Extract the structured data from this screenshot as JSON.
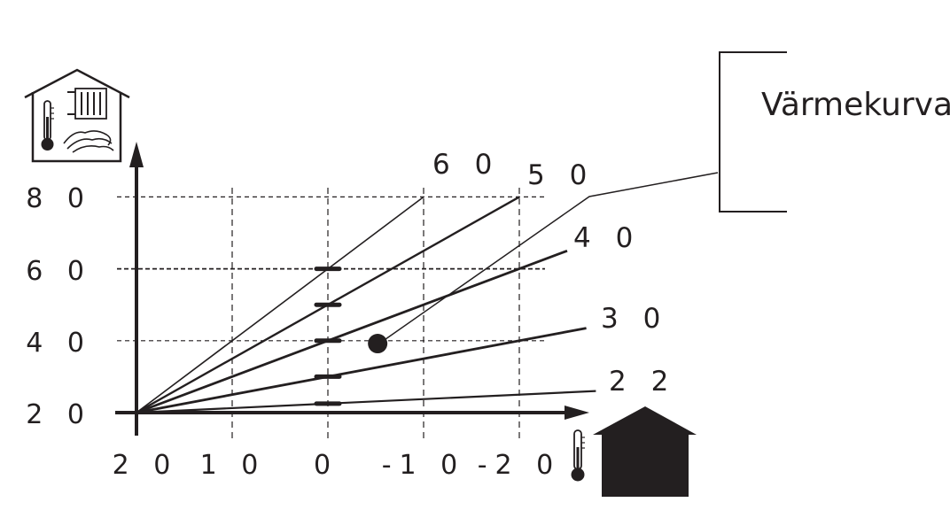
{
  "chart_data": {
    "type": "line",
    "title": "",
    "xlabel": "",
    "ylabel": "",
    "x_direction": "descending",
    "xlim": [
      20,
      -24
    ],
    "ylim": [
      20,
      83
    ],
    "grid": "dashed",
    "x_ticks": [
      {
        "value": 20,
        "label": "2 0"
      },
      {
        "value": 10,
        "label": "1 0"
      },
      {
        "value": 0,
        "label": "0"
      },
      {
        "value": -10,
        "label": "-1 0"
      },
      {
        "value": -20,
        "label": "-2 0"
      }
    ],
    "y_ticks": [
      {
        "value": 20,
        "label": "2 0"
      },
      {
        "value": 40,
        "label": "4 0"
      },
      {
        "value": 60,
        "label": "6 0"
      },
      {
        "value": 80,
        "label": "8 0"
      }
    ],
    "x_gridlines": [
      10,
      0,
      -10,
      -20
    ],
    "y_gridlines": [
      40,
      60,
      80
    ],
    "origin": {
      "x": 20,
      "y": 20
    },
    "series": [
      {
        "name": "6 0",
        "value_at_0": 60,
        "x_end": -10
      },
      {
        "name": "5 0",
        "value_at_0": 50,
        "x_end": -20
      },
      {
        "name": "4 0",
        "value_at_0": 40,
        "x_end": -25
      },
      {
        "name": "3 0",
        "value_at_0": 30,
        "x_end": -27
      },
      {
        "name": "2 2",
        "value_at_0": 22.5,
        "x_end": -28
      }
    ],
    "marker_point": {
      "x": -5.2,
      "y": 39.2
    },
    "callout": {
      "label": "Värmekurva"
    }
  },
  "icons": {
    "indoor": "house-radiator-floor-heating-thermometer-icon",
    "outdoor": "house-outdoor-thermometer-icon"
  },
  "colors": {
    "ink": "#231f20",
    "background": "#ffffff"
  }
}
